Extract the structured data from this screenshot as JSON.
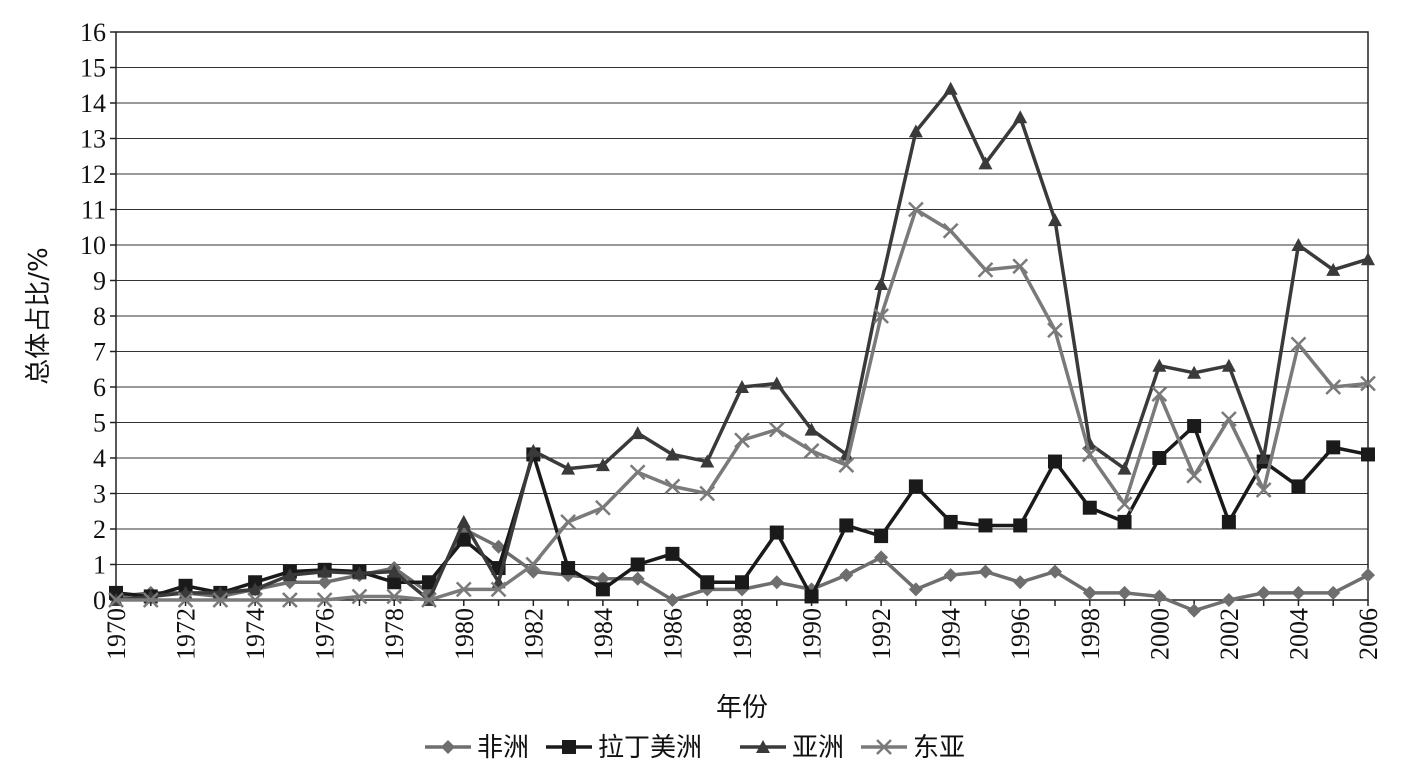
{
  "chart_data": {
    "type": "line",
    "title": "",
    "xlabel": "年份",
    "ylabel": "总体占比/%",
    "ylim": [
      0,
      16
    ],
    "xlim": [
      1970,
      2006
    ],
    "grid": "horizontal",
    "legend_position": "bottom",
    "x": [
      1970,
      1971,
      1972,
      1973,
      1974,
      1975,
      1976,
      1977,
      1978,
      1979,
      1980,
      1981,
      1982,
      1983,
      1984,
      1985,
      1986,
      1987,
      1988,
      1989,
      1990,
      1991,
      1992,
      1993,
      1994,
      1995,
      1996,
      1997,
      1998,
      1999,
      2000,
      2001,
      2002,
      2003,
      2004,
      2005,
      2006
    ],
    "x_tick_labels": [
      "1970",
      "1972",
      "1974",
      "1976",
      "1978",
      "1980",
      "1982",
      "1984",
      "1986",
      "1988",
      "1990",
      "1992",
      "1994",
      "1996",
      "1998",
      "2000",
      "2002",
      "2004",
      "2006"
    ],
    "y_tick_labels": [
      "0",
      "1",
      "2",
      "3",
      "4",
      "5",
      "6",
      "7",
      "8",
      "9",
      "10",
      "11",
      "12",
      "13",
      "14",
      "15",
      "16"
    ],
    "series": [
      {
        "name": "非洲",
        "marker": "diamond",
        "color": "#6e6e6e",
        "values": [
          0.1,
          0.2,
          0.2,
          0.1,
          0.3,
          0.5,
          0.5,
          0.7,
          0.9,
          0.2,
          2.0,
          1.5,
          0.8,
          0.7,
          0.6,
          0.6,
          0.0,
          0.3,
          0.3,
          0.5,
          0.3,
          0.7,
          1.2,
          0.3,
          0.7,
          0.8,
          0.5,
          0.8,
          0.2,
          0.2,
          0.1,
          -0.3,
          0.0,
          0.2,
          0.2,
          0.2,
          0.7
        ]
      },
      {
        "name": "拉丁美洲",
        "marker": "square",
        "color": "#1a1a1a",
        "values": [
          0.2,
          0.1,
          0.4,
          0.2,
          0.5,
          0.8,
          0.85,
          0.8,
          0.5,
          0.5,
          1.7,
          0.9,
          4.1,
          0.9,
          0.3,
          1.0,
          1.3,
          0.5,
          0.5,
          1.9,
          0.1,
          2.1,
          1.8,
          3.2,
          2.2,
          2.1,
          2.1,
          3.9,
          2.6,
          2.2,
          4.0,
          4.9,
          2.2,
          3.9,
          3.2,
          4.3,
          4.1
        ]
      },
      {
        "name": "亚洲",
        "marker": "triangle",
        "color": "#3a3a3a",
        "values": [
          0.0,
          0.1,
          0.2,
          0.2,
          0.3,
          0.7,
          0.8,
          0.75,
          0.8,
          0.0,
          2.2,
          0.5,
          4.2,
          3.7,
          3.8,
          4.7,
          4.1,
          3.9,
          6.0,
          6.1,
          4.8,
          4.1,
          8.9,
          13.2,
          14.4,
          12.3,
          13.6,
          10.7,
          4.4,
          3.7,
          6.6,
          6.4,
          6.6,
          4.0,
          10.0,
          9.3,
          9.6
        ]
      },
      {
        "name": "东亚",
        "marker": "cross",
        "color": "#7a7a7a",
        "values": [
          0.0,
          0.0,
          0.0,
          0.0,
          0.0,
          0.0,
          0.0,
          0.1,
          0.1,
          0.0,
          0.3,
          0.3,
          1.0,
          2.2,
          2.6,
          3.6,
          3.2,
          3.0,
          4.5,
          4.8,
          4.2,
          3.8,
          8.0,
          11.0,
          10.4,
          9.3,
          9.4,
          7.6,
          4.1,
          2.7,
          5.8,
          3.5,
          5.1,
          3.1,
          7.2,
          6.0,
          6.1
        ]
      }
    ]
  }
}
